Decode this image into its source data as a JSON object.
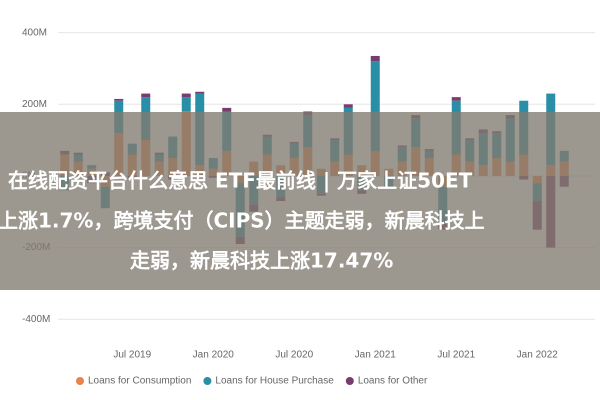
{
  "chart_data": {
    "type": "stacked_bar",
    "categories": [
      null,
      null,
      null,
      null,
      null,
      "Jul 2019",
      null,
      null,
      null,
      null,
      null,
      "Jan 2020",
      null,
      null,
      null,
      null,
      null,
      "Jul 2020",
      null,
      null,
      null,
      null,
      null,
      "Jan 2021",
      null,
      null,
      null,
      null,
      null,
      "Jul 2021",
      null,
      null,
      null,
      null,
      null,
      "Jan 2022",
      null,
      null
    ],
    "series": [
      {
        "name": "Loans for Consumption",
        "color": "#e8834e",
        "values": [
          60,
          40,
          20,
          -30,
          120,
          60,
          100,
          40,
          50,
          180,
          30,
          20,
          70,
          -20,
          40,
          60,
          30,
          50,
          80,
          20,
          40,
          60,
          30,
          70,
          20,
          40,
          80,
          50,
          -30,
          60,
          40,
          30,
          50,
          40,
          60,
          -20,
          30,
          40
        ]
      },
      {
        "name": "Loans for House Purchase",
        "color": "#2a8fa6",
        "values": [
          -40,
          20,
          10,
          -60,
          90,
          30,
          120,
          20,
          60,
          40,
          200,
          30,
          110,
          -150,
          -80,
          50,
          -60,
          40,
          90,
          -50,
          60,
          130,
          -40,
          250,
          -30,
          40,
          80,
          20,
          -100,
          150,
          60,
          90,
          70,
          120,
          150,
          -50,
          200,
          30
        ]
      },
      {
        "name": "Loans for Other",
        "color": "#7a3b6e",
        "values": [
          10,
          5,
          -20,
          10,
          5,
          -10,
          10,
          5,
          -10,
          10,
          5,
          -5,
          10,
          -20,
          -20,
          5,
          -10,
          5,
          10,
          -5,
          5,
          10,
          -10,
          15,
          -5,
          5,
          10,
          5,
          -20,
          10,
          5,
          10,
          5,
          10,
          -10,
          -80,
          -200,
          -30
        ]
      }
    ],
    "ylim": [
      -430,
      480
    ],
    "yticks": [
      {
        "value": 400,
        "label": "400M"
      },
      {
        "value": 200,
        "label": "200M"
      },
      {
        "value": 0,
        "label": "0M"
      },
      {
        "value": -200,
        "label": "-200M"
      },
      {
        "value": -400,
        "label": "-400M"
      }
    ],
    "grid": true,
    "legend": "bottom",
    "annotations": [
      "在线配资平台什么意思 ETF最前线 | 万家上证50ET",
      "上涨1.7%，跨境支付（CIPS）主题走弱，新晨科技上",
      "走弱，新晨科技上涨17.47%"
    ]
  }
}
